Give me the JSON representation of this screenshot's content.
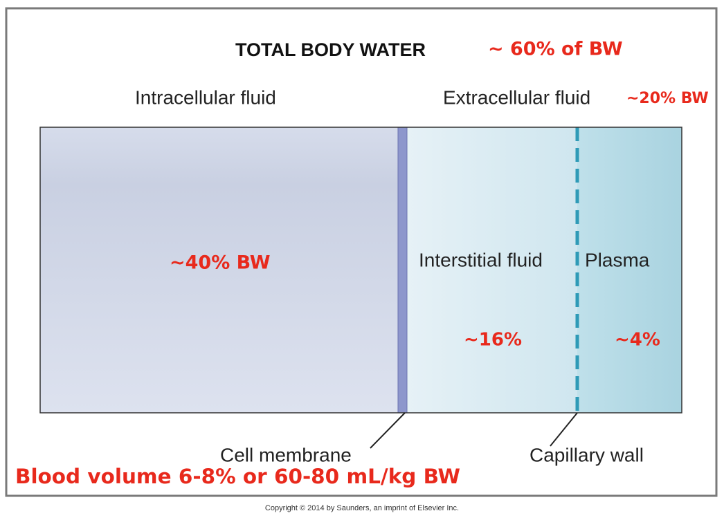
{
  "title": "TOTAL BODY WATER",
  "title_note": "~ 60% of BW",
  "labels": {
    "intracellular": "Intracellular fluid",
    "extracellular": "Extracellular fluid",
    "extracellular_note": "~20% BW",
    "intracellular_note": "~40% BW",
    "interstitial": "Interstitial fluid",
    "plasma": "Plasma",
    "interstitial_note": "~16%",
    "plasma_note": "~4%",
    "cell_membrane": "Cell membrane",
    "capillary_wall": "Capillary wall"
  },
  "blood_volume_note": "Blood volume 6-8% or 60-80 mL/kg BW",
  "copyright": "Copyright © 2014 by Saunders, an imprint of Elsevier Inc."
}
